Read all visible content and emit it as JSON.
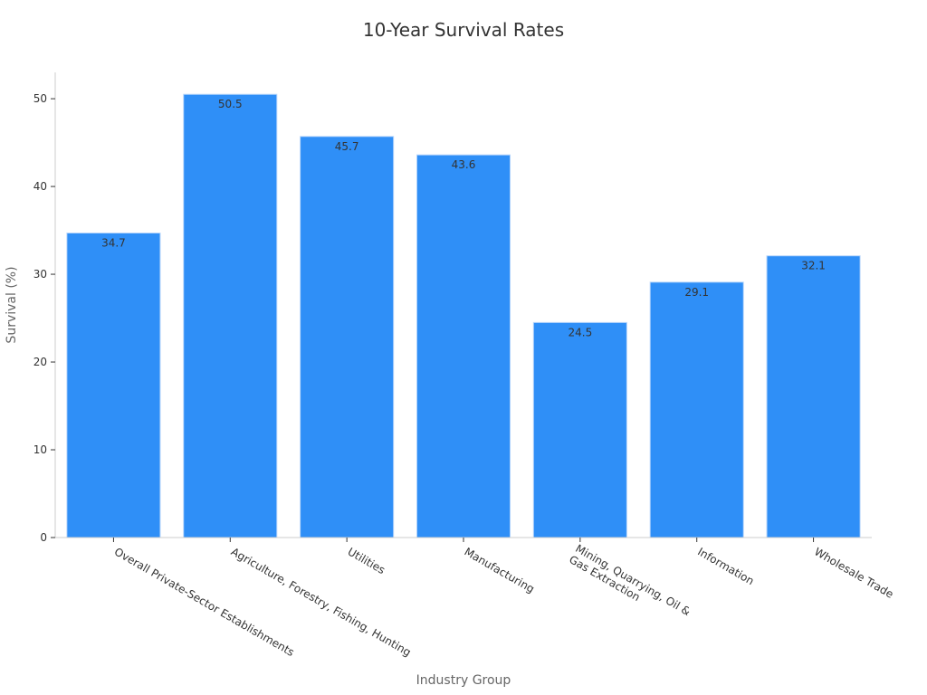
{
  "chart_data": {
    "type": "bar",
    "title": "10-Year Survival Rates",
    "xlabel": "Industry Group",
    "ylabel": "Survival (%)",
    "categories": [
      [
        "Overall Private-Sector Establishments"
      ],
      [
        "Agriculture, Forestry, Fishing, Hunting"
      ],
      [
        "Utilities"
      ],
      [
        "Manufacturing"
      ],
      [
        "Mining, Quarrying, Oil &",
        "Gas Extraction"
      ],
      [
        "Information"
      ],
      [
        "Wholesale Trade"
      ]
    ],
    "values": [
      34.7,
      50.5,
      45.7,
      43.6,
      24.5,
      29.1,
      32.1
    ],
    "value_labels": [
      "34.7",
      "50.5",
      "45.7",
      "43.6",
      "24.5",
      "29.1",
      "32.1"
    ],
    "ylim": [
      0,
      53
    ],
    "yticks": [
      0,
      10,
      20,
      30,
      40,
      50
    ],
    "ytick_labels": [
      "0",
      "10",
      "20",
      "30",
      "40",
      "50"
    ],
    "grid": false,
    "legend": "none",
    "colors": {
      "bar": "#2f8ff7",
      "bar_edge": "#b8d6fb"
    }
  }
}
